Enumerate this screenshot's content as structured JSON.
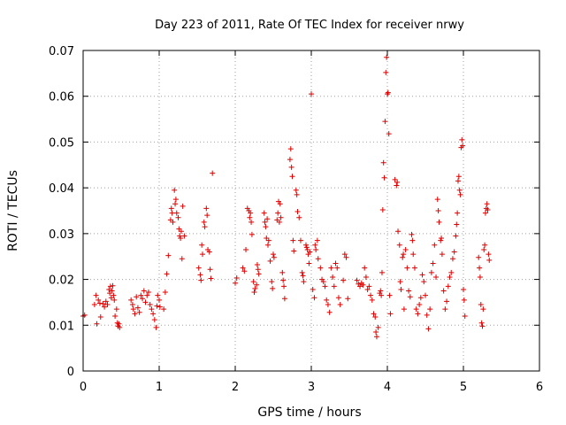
{
  "chart_data": {
    "type": "scatter",
    "title": "Day 223 of 2011, Rate Of TEC Index for receiver nrwy",
    "xlabel": "GPS time / hours",
    "ylabel": "ROTI / TECUs",
    "xlim": [
      0,
      6
    ],
    "ylim": [
      0,
      0.07
    ],
    "xticks": [
      "0",
      "1",
      "2",
      "3",
      "4",
      "5",
      "6"
    ],
    "yticks": [
      "0",
      "0.01",
      "0.02",
      "0.03",
      "0.04",
      "0.05",
      "0.06",
      "0.07"
    ],
    "grid": true,
    "marker": "+",
    "marker_color": "#dd0000",
    "series": [
      {
        "name": "ROTI",
        "points": [
          [
            0.0,
            0.012
          ],
          [
            0.02,
            0.0122
          ],
          [
            0.15,
            0.0145
          ],
          [
            0.17,
            0.0165
          ],
          [
            0.18,
            0.0103
          ],
          [
            0.2,
            0.0155
          ],
          [
            0.22,
            0.0148
          ],
          [
            0.23,
            0.0118
          ],
          [
            0.26,
            0.0147
          ],
          [
            0.28,
            0.014
          ],
          [
            0.3,
            0.0152
          ],
          [
            0.32,
            0.0145
          ],
          [
            0.34,
            0.0178
          ],
          [
            0.35,
            0.017
          ],
          [
            0.36,
            0.0185
          ],
          [
            0.37,
            0.016
          ],
          [
            0.38,
            0.0175
          ],
          [
            0.39,
            0.0186
          ],
          [
            0.4,
            0.0165
          ],
          [
            0.41,
            0.0155
          ],
          [
            0.42,
            0.012
          ],
          [
            0.44,
            0.0135
          ],
          [
            0.45,
            0.0105
          ],
          [
            0.46,
            0.0098
          ],
          [
            0.47,
            0.0103
          ],
          [
            0.48,
            0.0095
          ],
          [
            0.63,
            0.0155
          ],
          [
            0.65,
            0.0145
          ],
          [
            0.66,
            0.0135
          ],
          [
            0.68,
            0.0125
          ],
          [
            0.7,
            0.0162
          ],
          [
            0.72,
            0.0138
          ],
          [
            0.74,
            0.0128
          ],
          [
            0.76,
            0.0165
          ],
          [
            0.78,
            0.0158
          ],
          [
            0.8,
            0.0175
          ],
          [
            0.82,
            0.015
          ],
          [
            0.84,
            0.0165
          ],
          [
            0.86,
            0.0172
          ],
          [
            0.88,
            0.0145
          ],
          [
            0.9,
            0.0135
          ],
          [
            0.92,
            0.0125
          ],
          [
            0.94,
            0.0112
          ],
          [
            0.96,
            0.0095
          ],
          [
            0.97,
            0.0142
          ],
          [
            0.98,
            0.0165
          ],
          [
            1.0,
            0.0155
          ],
          [
            1.01,
            0.014
          ],
          [
            1.06,
            0.0135
          ],
          [
            1.08,
            0.0172
          ],
          [
            1.1,
            0.0212
          ],
          [
            1.12,
            0.0252
          ],
          [
            1.15,
            0.033
          ],
          [
            1.16,
            0.0355
          ],
          [
            1.17,
            0.0345
          ],
          [
            1.18,
            0.0325
          ],
          [
            1.2,
            0.0395
          ],
          [
            1.21,
            0.0365
          ],
          [
            1.22,
            0.0375
          ],
          [
            1.23,
            0.0345
          ],
          [
            1.25,
            0.0335
          ],
          [
            1.26,
            0.031
          ],
          [
            1.27,
            0.0295
          ],
          [
            1.28,
            0.029
          ],
          [
            1.29,
            0.0305
          ],
          [
            1.3,
            0.0245
          ],
          [
            1.31,
            0.036
          ],
          [
            1.33,
            0.0295
          ],
          [
            1.52,
            0.0225
          ],
          [
            1.54,
            0.021
          ],
          [
            1.55,
            0.0198
          ],
          [
            1.56,
            0.0275
          ],
          [
            1.57,
            0.0255
          ],
          [
            1.59,
            0.0325
          ],
          [
            1.6,
            0.0315
          ],
          [
            1.62,
            0.0355
          ],
          [
            1.63,
            0.034
          ],
          [
            1.64,
            0.0265
          ],
          [
            1.66,
            0.026
          ],
          [
            1.67,
            0.0222
          ],
          [
            1.68,
            0.0202
          ],
          [
            1.7,
            0.0432
          ],
          [
            2.0,
            0.0192
          ],
          [
            2.02,
            0.0203
          ],
          [
            2.1,
            0.0225
          ],
          [
            2.12,
            0.0218
          ],
          [
            2.14,
            0.0265
          ],
          [
            2.16,
            0.0355
          ],
          [
            2.18,
            0.035
          ],
          [
            2.19,
            0.0335
          ],
          [
            2.2,
            0.0345
          ],
          [
            2.21,
            0.0325
          ],
          [
            2.22,
            0.0298
          ],
          [
            2.24,
            0.0195
          ],
          [
            2.25,
            0.0172
          ],
          [
            2.26,
            0.018
          ],
          [
            2.28,
            0.0188
          ],
          [
            2.29,
            0.0232
          ],
          [
            2.3,
            0.0222
          ],
          [
            2.31,
            0.0212
          ],
          [
            2.38,
            0.0345
          ],
          [
            2.39,
            0.0325
          ],
          [
            2.4,
            0.0315
          ],
          [
            2.41,
            0.029
          ],
          [
            2.42,
            0.0332
          ],
          [
            2.43,
            0.0275
          ],
          [
            2.44,
            0.0285
          ],
          [
            2.46,
            0.024
          ],
          [
            2.48,
            0.0195
          ],
          [
            2.49,
            0.018
          ],
          [
            2.5,
            0.0255
          ],
          [
            2.51,
            0.0248
          ],
          [
            2.55,
            0.033
          ],
          [
            2.56,
            0.0345
          ],
          [
            2.57,
            0.037
          ],
          [
            2.58,
            0.0325
          ],
          [
            2.59,
            0.0365
          ],
          [
            2.6,
            0.0335
          ],
          [
            2.62,
            0.0215
          ],
          [
            2.63,
            0.0198
          ],
          [
            2.64,
            0.0185
          ],
          [
            2.65,
            0.0158
          ],
          [
            2.72,
            0.0462
          ],
          [
            2.73,
            0.0485
          ],
          [
            2.74,
            0.0445
          ],
          [
            2.75,
            0.0425
          ],
          [
            2.76,
            0.0285
          ],
          [
            2.77,
            0.0262
          ],
          [
            2.8,
            0.0395
          ],
          [
            2.81,
            0.0385
          ],
          [
            2.82,
            0.0348
          ],
          [
            2.84,
            0.0335
          ],
          [
            2.86,
            0.0285
          ],
          [
            2.88,
            0.0215
          ],
          [
            2.89,
            0.0208
          ],
          [
            2.9,
            0.0195
          ],
          [
            2.93,
            0.0275
          ],
          [
            2.94,
            0.027
          ],
          [
            2.95,
            0.0265
          ],
          [
            2.96,
            0.0255
          ],
          [
            2.97,
            0.0235
          ],
          [
            2.98,
            0.026
          ],
          [
            3.0,
            0.0605
          ],
          [
            3.02,
            0.0178
          ],
          [
            3.04,
            0.016
          ],
          [
            3.05,
            0.0275
          ],
          [
            3.06,
            0.0265
          ],
          [
            3.08,
            0.0285
          ],
          [
            3.09,
            0.0245
          ],
          [
            3.12,
            0.0225
          ],
          [
            3.14,
            0.02
          ],
          [
            3.16,
            0.0195
          ],
          [
            3.18,
            0.0185
          ],
          [
            3.2,
            0.0155
          ],
          [
            3.22,
            0.0145
          ],
          [
            3.24,
            0.0128
          ],
          [
            3.26,
            0.0225
          ],
          [
            3.28,
            0.0205
          ],
          [
            3.3,
            0.0185
          ],
          [
            3.32,
            0.0235
          ],
          [
            3.34,
            0.0225
          ],
          [
            3.36,
            0.016
          ],
          [
            3.38,
            0.0145
          ],
          [
            3.42,
            0.0198
          ],
          [
            3.44,
            0.0255
          ],
          [
            3.46,
            0.0248
          ],
          [
            3.48,
            0.0158
          ],
          [
            3.6,
            0.0198
          ],
          [
            3.62,
            0.019
          ],
          [
            3.64,
            0.0185
          ],
          [
            3.66,
            0.0192
          ],
          [
            3.68,
            0.0188
          ],
          [
            3.7,
            0.0225
          ],
          [
            3.72,
            0.0205
          ],
          [
            3.74,
            0.0178
          ],
          [
            3.76,
            0.0185
          ],
          [
            3.78,
            0.0165
          ],
          [
            3.8,
            0.0155
          ],
          [
            3.82,
            0.0125
          ],
          [
            3.84,
            0.0118
          ],
          [
            3.85,
            0.0085
          ],
          [
            3.86,
            0.0075
          ],
          [
            3.88,
            0.0095
          ],
          [
            3.9,
            0.017
          ],
          [
            3.91,
            0.0175
          ],
          [
            3.92,
            0.0165
          ],
          [
            3.93,
            0.0215
          ],
          [
            3.94,
            0.0352
          ],
          [
            3.95,
            0.0455
          ],
          [
            3.96,
            0.0422
          ],
          [
            3.97,
            0.0545
          ],
          [
            3.98,
            0.0652
          ],
          [
            3.99,
            0.0685
          ],
          [
            4.0,
            0.0605
          ],
          [
            4.01,
            0.0608
          ],
          [
            4.02,
            0.0518
          ],
          [
            4.03,
            0.0165
          ],
          [
            4.04,
            0.0125
          ],
          [
            4.1,
            0.0418
          ],
          [
            4.12,
            0.0405
          ],
          [
            4.13,
            0.0412
          ],
          [
            4.14,
            0.0305
          ],
          [
            4.16,
            0.0275
          ],
          [
            4.17,
            0.0195
          ],
          [
            4.18,
            0.0178
          ],
          [
            4.2,
            0.0248
          ],
          [
            4.21,
            0.0255
          ],
          [
            4.22,
            0.0135
          ],
          [
            4.24,
            0.0265
          ],
          [
            4.26,
            0.0225
          ],
          [
            4.28,
            0.0175
          ],
          [
            4.3,
            0.0162
          ],
          [
            4.32,
            0.0298
          ],
          [
            4.33,
            0.0285
          ],
          [
            4.34,
            0.0255
          ],
          [
            4.36,
            0.0225
          ],
          [
            4.38,
            0.0135
          ],
          [
            4.4,
            0.0125
          ],
          [
            4.42,
            0.0145
          ],
          [
            4.44,
            0.016
          ],
          [
            4.46,
            0.021
          ],
          [
            4.48,
            0.0195
          ],
          [
            4.5,
            0.0165
          ],
          [
            4.52,
            0.0122
          ],
          [
            4.54,
            0.0092
          ],
          [
            4.56,
            0.0135
          ],
          [
            4.58,
            0.0215
          ],
          [
            4.6,
            0.0235
          ],
          [
            4.62,
            0.0275
          ],
          [
            4.64,
            0.0205
          ],
          [
            4.66,
            0.0375
          ],
          [
            4.67,
            0.035
          ],
          [
            4.68,
            0.0325
          ],
          [
            4.7,
            0.0285
          ],
          [
            4.71,
            0.029
          ],
          [
            4.72,
            0.0255
          ],
          [
            4.74,
            0.0175
          ],
          [
            4.76,
            0.0135
          ],
          [
            4.78,
            0.0152
          ],
          [
            4.8,
            0.0185
          ],
          [
            4.82,
            0.0205
          ],
          [
            4.84,
            0.0215
          ],
          [
            4.86,
            0.0245
          ],
          [
            4.88,
            0.026
          ],
          [
            4.9,
            0.0295
          ],
          [
            4.91,
            0.032
          ],
          [
            4.92,
            0.0345
          ],
          [
            4.93,
            0.0415
          ],
          [
            4.94,
            0.0425
          ],
          [
            4.95,
            0.0395
          ],
          [
            4.96,
            0.0385
          ],
          [
            4.97,
            0.0488
          ],
          [
            4.98,
            0.0505
          ],
          [
            4.99,
            0.0492
          ],
          [
            5.0,
            0.0178
          ],
          [
            5.01,
            0.0155
          ],
          [
            5.02,
            0.012
          ],
          [
            5.2,
            0.0248
          ],
          [
            5.21,
            0.0225
          ],
          [
            5.22,
            0.0205
          ],
          [
            5.23,
            0.0145
          ],
          [
            5.24,
            0.0105
          ],
          [
            5.25,
            0.0098
          ],
          [
            5.26,
            0.0135
          ],
          [
            5.27,
            0.0265
          ],
          [
            5.28,
            0.0275
          ],
          [
            5.29,
            0.0345
          ],
          [
            5.3,
            0.0355
          ],
          [
            5.31,
            0.0365
          ],
          [
            5.32,
            0.0352
          ],
          [
            5.33,
            0.0255
          ],
          [
            5.34,
            0.0242
          ]
        ]
      }
    ]
  }
}
